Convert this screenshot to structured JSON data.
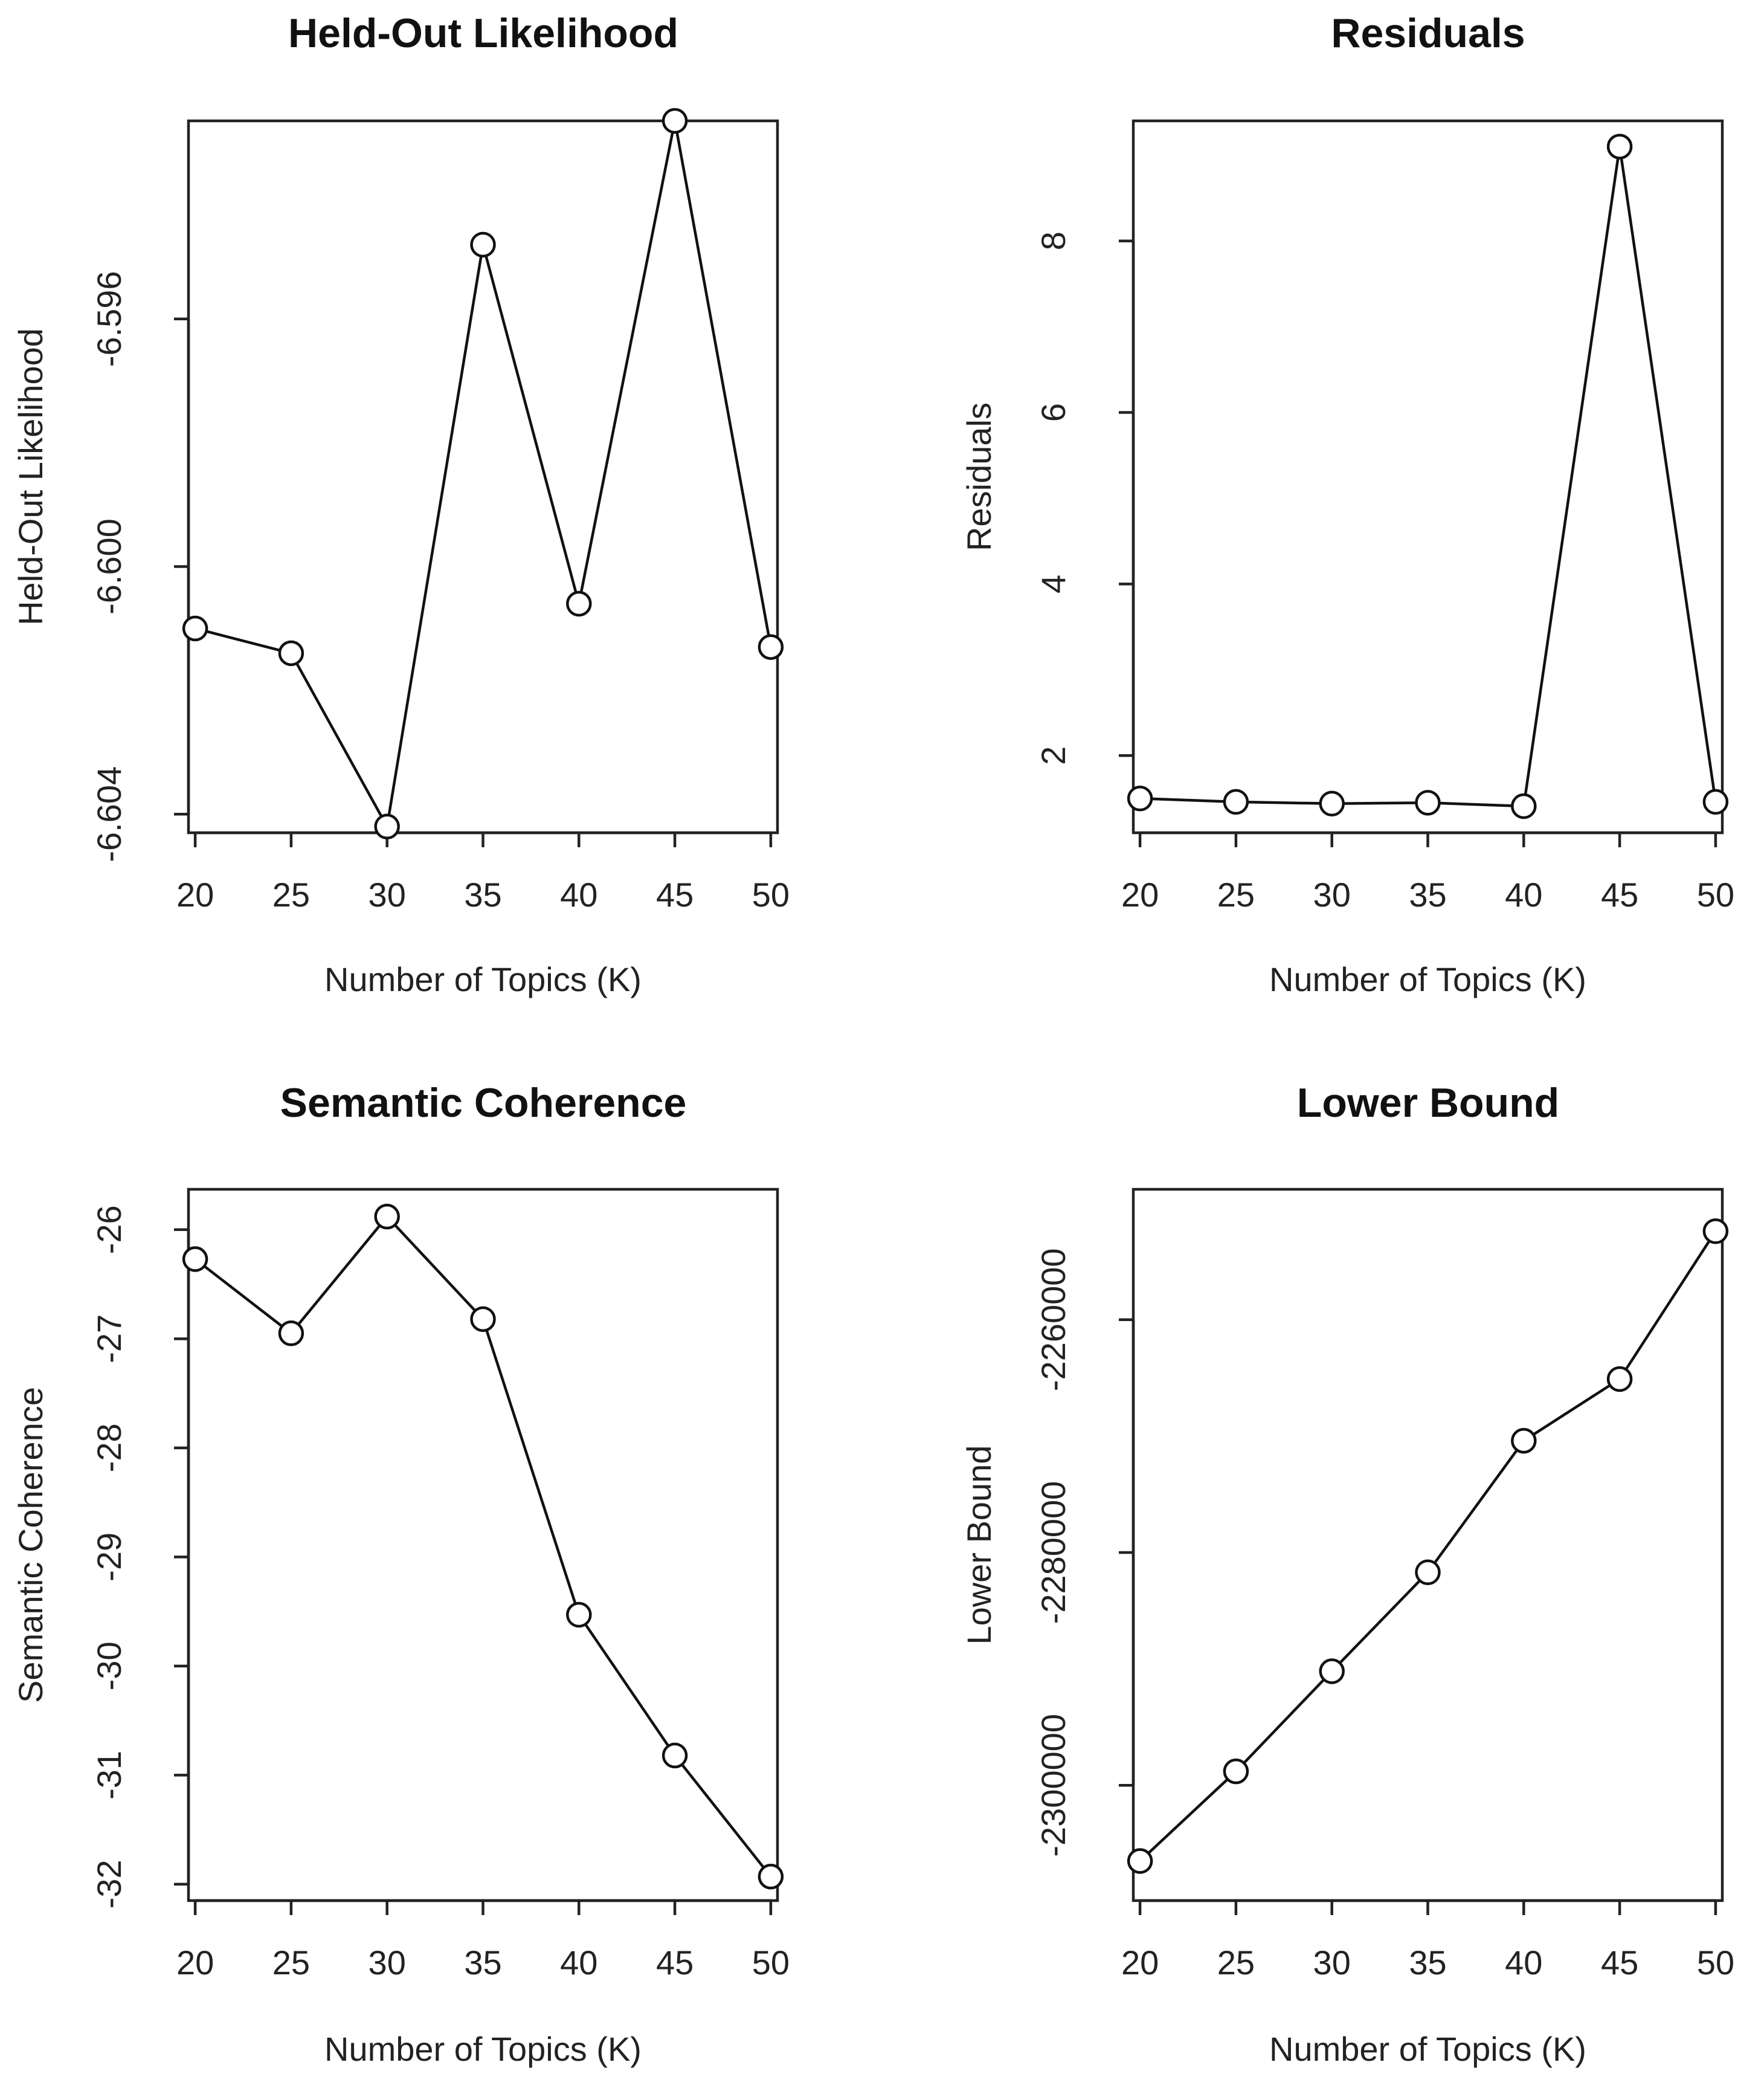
{
  "chart_data": [
    {
      "type": "line",
      "title": "Held-Out Likelihood",
      "xlabel": "Number of Topics (K)",
      "ylabel": "Held-Out Likelihood",
      "x": [
        20,
        25,
        30,
        35,
        40,
        45,
        50
      ],
      "values": [
        -6.601,
        -6.6014,
        -6.6042,
        -6.5948,
        -6.6006,
        -6.5928,
        -6.6013
      ],
      "xticks": [
        "20",
        "25",
        "30",
        "35",
        "40",
        "45",
        "50"
      ],
      "yticks": [
        -6.604,
        -6.6,
        -6.596
      ],
      "ytick_labels": [
        "-6.604",
        "-6.600",
        "-6.596"
      ],
      "ylim": [
        -6.6043,
        -6.5928
      ],
      "xlim": [
        19.65,
        50.35
      ],
      "grid": false,
      "marker": "open-circle"
    },
    {
      "type": "line",
      "title": "Residuals",
      "xlabel": "Number of Topics (K)",
      "ylabel": "Residuals",
      "x": [
        20,
        25,
        30,
        35,
        40,
        45,
        50
      ],
      "values": [
        1.5,
        1.46,
        1.44,
        1.45,
        1.41,
        9.1,
        1.46
      ],
      "xticks": [
        "20",
        "25",
        "30",
        "35",
        "40",
        "45",
        "50"
      ],
      "yticks": [
        2,
        4,
        6,
        8
      ],
      "ytick_labels": [
        "2",
        "4",
        "6",
        "8"
      ],
      "ylim": [
        1.1,
        9.4
      ],
      "xlim": [
        19.65,
        50.35
      ],
      "grid": false,
      "marker": "open-circle"
    },
    {
      "type": "line",
      "title": "Semantic Coherence",
      "xlabel": "Number of Topics (K)",
      "ylabel": "Semantic Coherence",
      "x": [
        20,
        25,
        30,
        35,
        40,
        45,
        50
      ],
      "values": [
        -26.27,
        -26.95,
        -25.88,
        -26.82,
        -29.53,
        -30.82,
        -31.93
      ],
      "xticks": [
        "20",
        "25",
        "30",
        "35",
        "40",
        "45",
        "50"
      ],
      "yticks": [
        -32,
        -31,
        -30,
        -29,
        -28,
        -27,
        -26
      ],
      "ytick_labels": [
        "-32",
        "-31",
        "-30",
        "-29",
        "-28",
        "-27",
        "-26"
      ],
      "ylim": [
        -32.15,
        -25.63
      ],
      "xlim": [
        19.65,
        50.35
      ],
      "grid": false,
      "marker": "open-circle"
    },
    {
      "type": "line",
      "title": "Lower Bound",
      "xlabel": "Number of Topics (K)",
      "ylabel": "Lower Bound",
      "x": [
        20,
        25,
        30,
        35,
        40,
        45,
        50
      ],
      "values": [
        -2306500,
        -2298800,
        -2290200,
        -2281700,
        -2270400,
        -2265100,
        -2252400
      ],
      "xticks": [
        "20",
        "25",
        "30",
        "35",
        "40",
        "45",
        "50"
      ],
      "yticks": [
        -2300000,
        -2280000,
        -2260000
      ],
      "ytick_labels": [
        "-2300000",
        "-2280000",
        "-2260000"
      ],
      "ylim": [
        -2309900,
        -2248800
      ],
      "xlim": [
        19.65,
        50.35
      ],
      "grid": false,
      "marker": "open-circle"
    }
  ]
}
